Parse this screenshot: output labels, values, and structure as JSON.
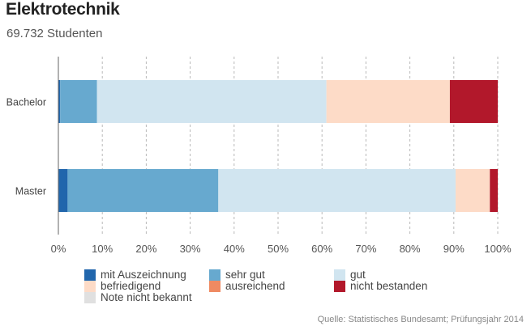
{
  "header": {
    "title": "Elektrotechnik",
    "subtitle": "69.732 Studenten"
  },
  "source": "Quelle: Statistisches Bundesamt; Prüfungsjahr 2014",
  "chart_data": {
    "type": "bar",
    "orientation": "horizontal",
    "stacked": true,
    "percent": true,
    "categories": [
      "Bachelor",
      "Master"
    ],
    "xlim": [
      0,
      100
    ],
    "ticks": [
      "0%",
      "10%",
      "20%",
      "30%",
      "40%",
      "50%",
      "60%",
      "70%",
      "80%",
      "90%",
      "100%"
    ],
    "grid": "vertical-dashed",
    "legend_position": "bottom",
    "series": [
      {
        "name": "mit Auszeichnung",
        "color": "#2166ac",
        "values": [
          0.4,
          2.1
        ]
      },
      {
        "name": "sehr gut",
        "color": "#67a9cf",
        "values": [
          8.4,
          34.3
        ]
      },
      {
        "name": "gut",
        "color": "#d1e5f0",
        "values": [
          52.2,
          54.0
        ]
      },
      {
        "name": "befriedigend",
        "color": "#fddbc7",
        "values": [
          28.1,
          7.8
        ]
      },
      {
        "name": "ausreichend",
        "color": "#ef8a62",
        "values": [
          0,
          0
        ]
      },
      {
        "name": "nicht bestanden",
        "color": "#b2182b",
        "values": [
          10.9,
          1.8
        ]
      },
      {
        "name": "Note nicht bekannt",
        "color": "#e0e0e0",
        "values": [
          0,
          0
        ]
      }
    ]
  }
}
